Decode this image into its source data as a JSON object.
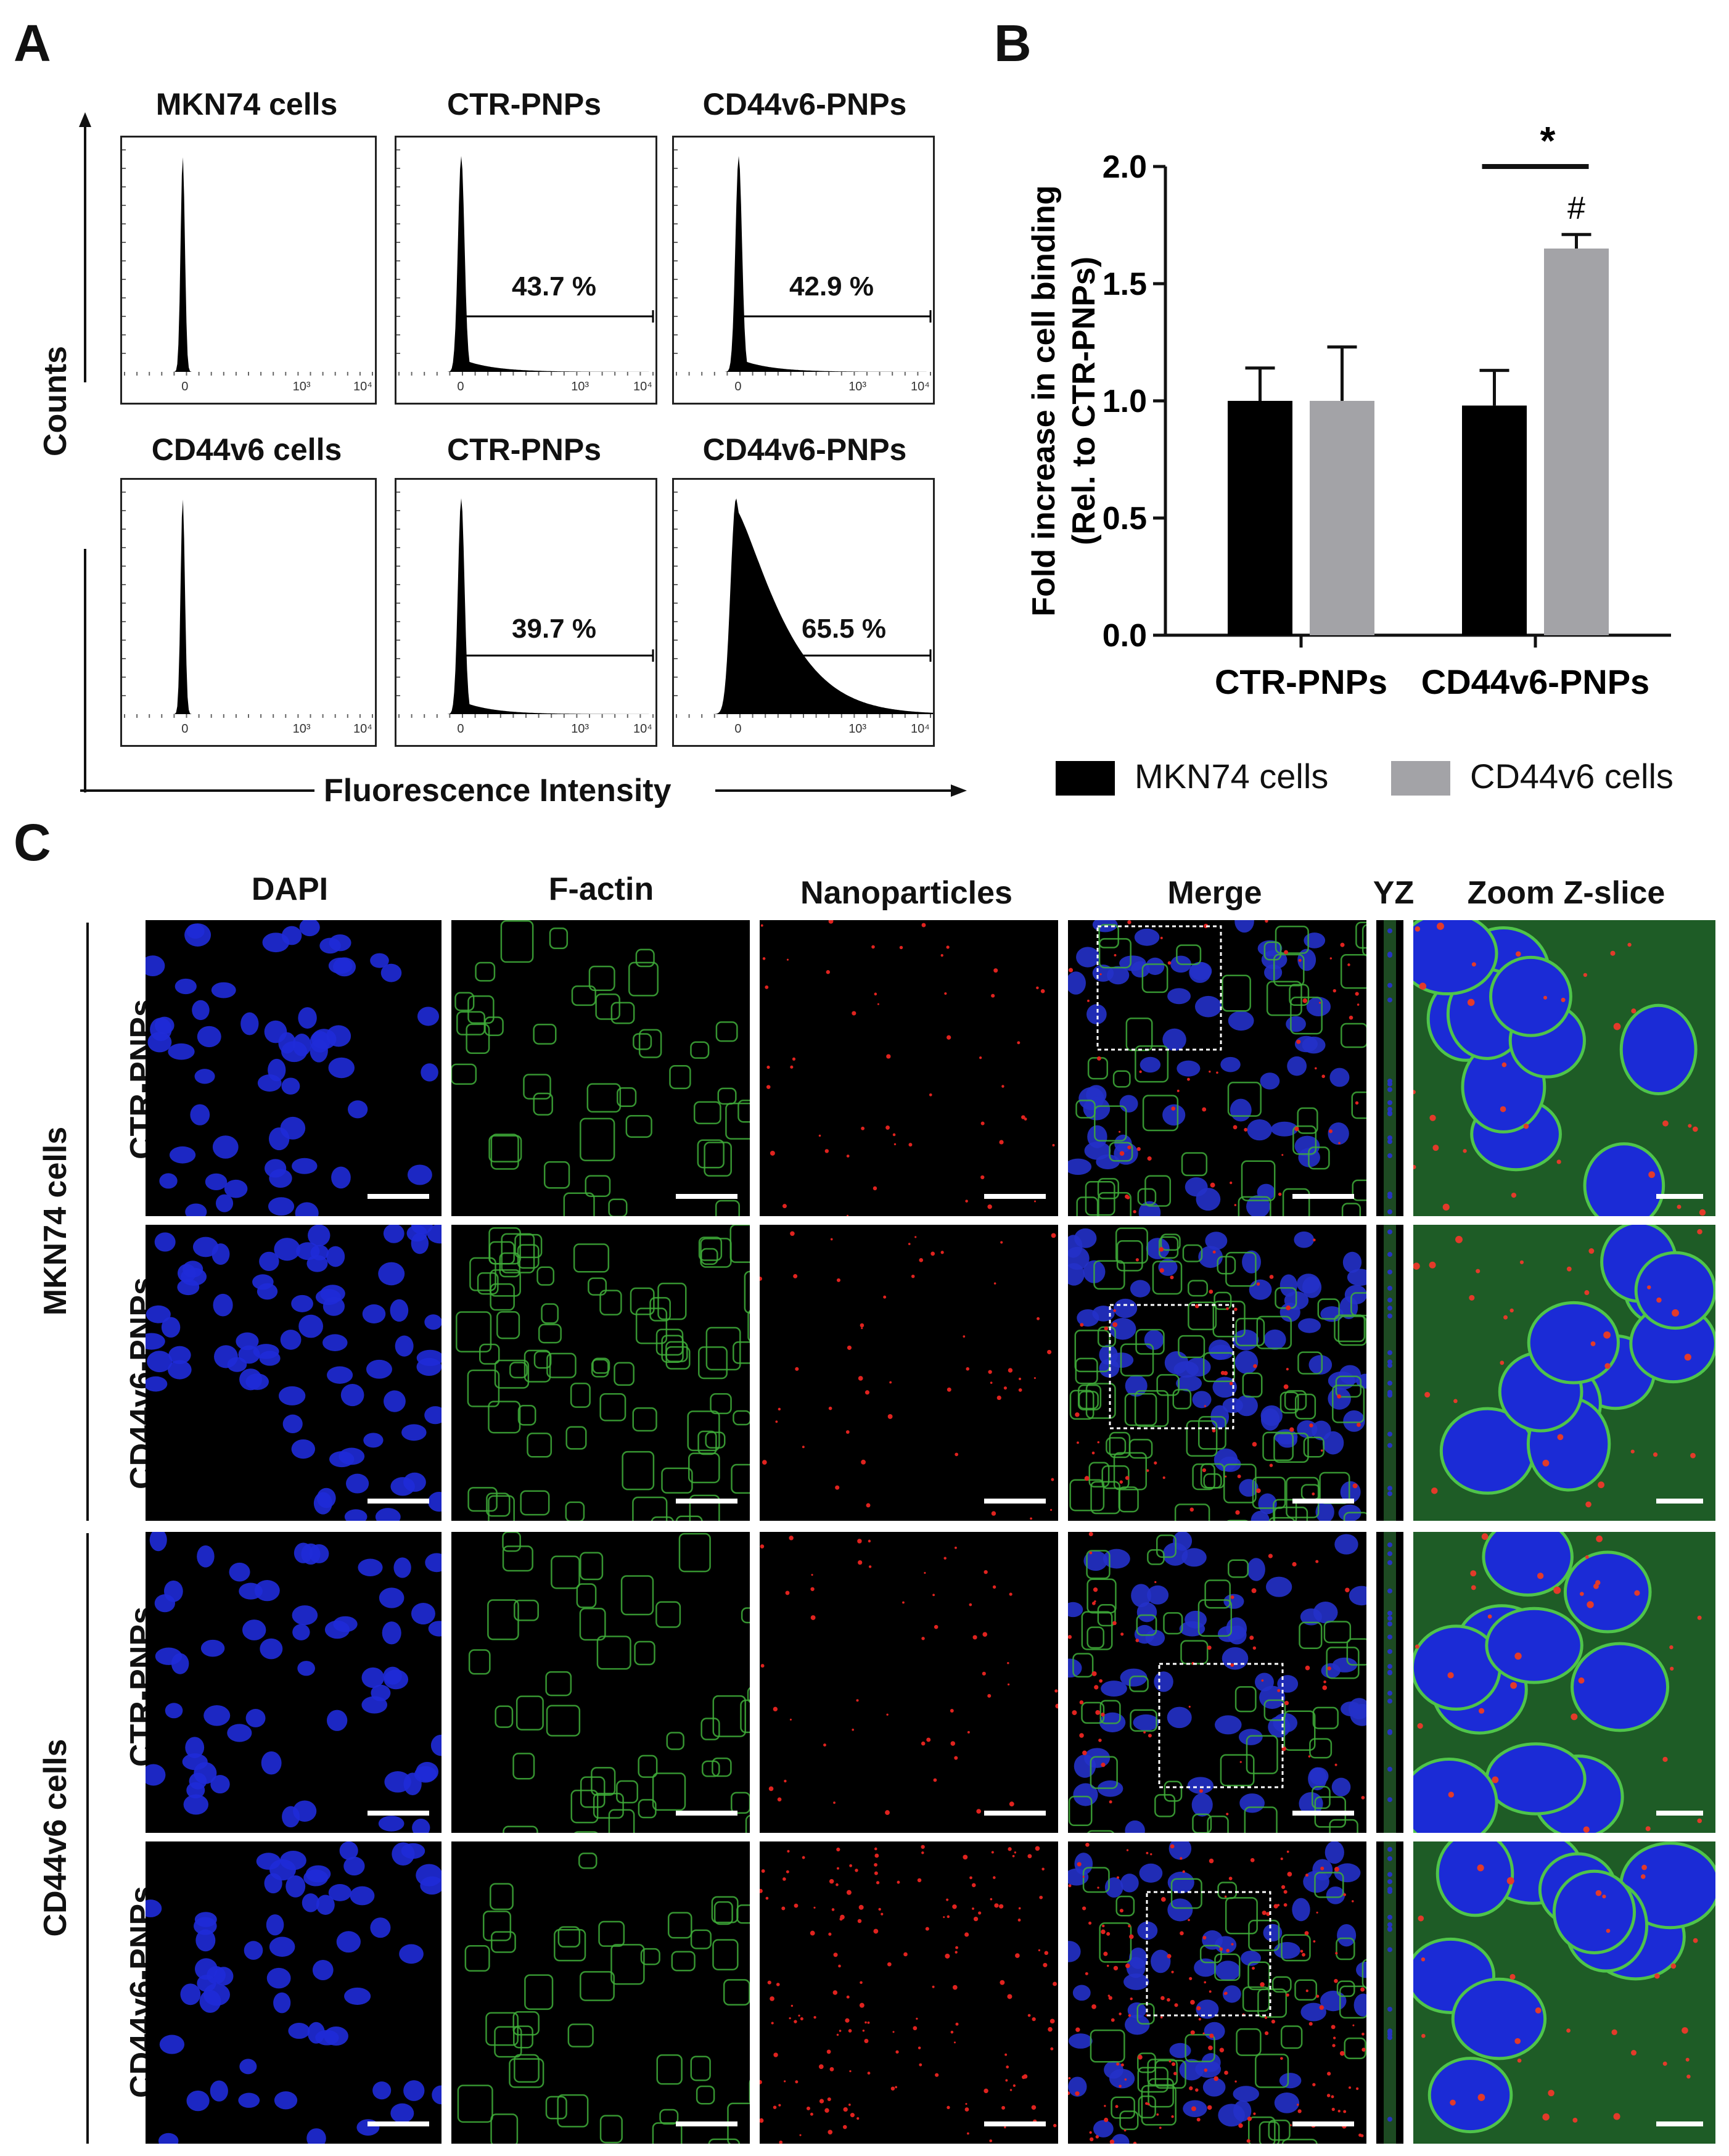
{
  "panels": {
    "A": "A",
    "B": "B",
    "C": "C"
  },
  "panelA": {
    "rows": [
      {
        "titles": [
          "MKN74  cells",
          "CTR-PNPs",
          "CD44v6-PNPs"
        ],
        "percents": [
          "",
          "43.7  %",
          "42.9  %"
        ]
      },
      {
        "titles": [
          "CD44v6  cells",
          "CTR-PNPs",
          "CD44v6-PNPs"
        ],
        "percents": [
          "",
          "39.7  %",
          "65.5  %"
        ]
      }
    ],
    "tick_labels": [
      "0",
      "10³",
      "10⁴"
    ],
    "y_axis_label": "Counts",
    "x_axis_label": "Fluorescence  Intensity"
  },
  "chart_data": {
    "type": "bar",
    "categories": [
      "CTR-PNPs",
      "CD44v6-PNPs"
    ],
    "series": [
      {
        "name": "MKN74 cells",
        "values": [
          1.0,
          0.98
        ],
        "errors": [
          0.14,
          0.15
        ],
        "color": "#000000"
      },
      {
        "name": "CD44v6 cells",
        "values": [
          1.0,
          1.65
        ],
        "errors": [
          0.23,
          0.06
        ],
        "color": "#a3a3a7"
      }
    ],
    "ylabel_line1": "Fold increase in cell binding",
    "ylabel_line2": "(Rel. to CTR-PNPs)",
    "ylim": [
      0.0,
      2.0
    ],
    "yticks": [
      "0.0",
      "0.5",
      "1.0",
      "1.5",
      "2.0"
    ],
    "significance": {
      "star": "*",
      "hash": "#"
    },
    "legend_placement": "bottom"
  },
  "panelC": {
    "columns": [
      "DAPI",
      "F-actin",
      "Nanoparticles",
      "Merge",
      "YZ",
      "Zoom  Z-slice"
    ],
    "group_labels": [
      "MKN74  cells",
      "CD44v6  cells"
    ],
    "row_labels": [
      "CTR-PNPs",
      "CD44v6-PNPs",
      "CTR-PNPs",
      "CD44v6-PNPs"
    ]
  }
}
